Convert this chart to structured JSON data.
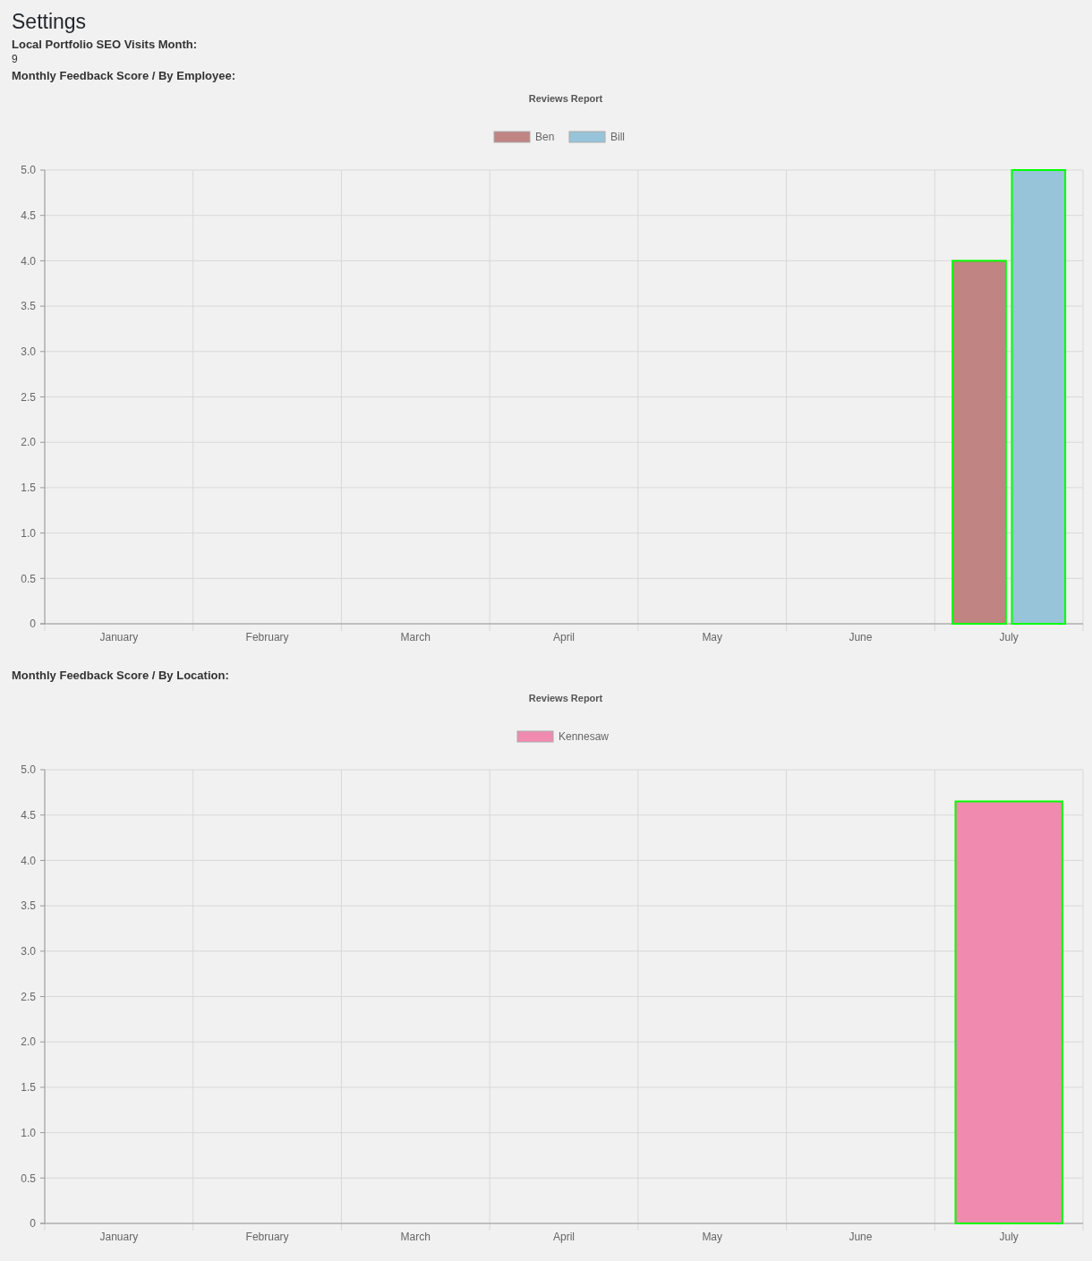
{
  "chart_data": [
    {
      "type": "bar",
      "title": "Reviews Report",
      "subtitle": "Monthly Feedback Score / By Employee:",
      "annotations": [
        "Settings",
        "Local Portfolio SEO Visits Month:",
        "9"
      ],
      "categories": [
        "January",
        "February",
        "March",
        "April",
        "May",
        "June",
        "July"
      ],
      "series": [
        {
          "name": "Ben",
          "color": "#c08482",
          "values": [
            null,
            null,
            null,
            null,
            null,
            null,
            4.0
          ]
        },
        {
          "name": "Bill",
          "color": "#97c4d8",
          "values": [
            null,
            null,
            null,
            null,
            null,
            null,
            5.0
          ]
        }
      ],
      "ylim": [
        0,
        5
      ],
      "yticks": [
        0,
        0.5,
        {
          "value": 1,
          "label": "1.0"
        },
        1.5,
        {
          "value": 2,
          "label": "2.0"
        },
        2.5,
        {
          "value": 3,
          "label": "3.0"
        },
        3.5,
        {
          "value": 4,
          "label": "4.0"
        },
        4.5,
        {
          "value": 5,
          "label": "5.0"
        }
      ],
      "grid": true,
      "legend": "top"
    },
    {
      "type": "bar",
      "title": "Reviews Report",
      "subtitle": "Monthly Feedback Score / By Location:",
      "categories": [
        "January",
        "February",
        "March",
        "April",
        "May",
        "June",
        "July"
      ],
      "series": [
        {
          "name": "Kennesaw",
          "color": "#f08aae",
          "values": [
            null,
            null,
            null,
            null,
            null,
            null,
            4.65
          ]
        }
      ],
      "ylim": [
        0,
        5
      ],
      "yticks": [
        0,
        0.5,
        {
          "value": 1,
          "label": "1.0"
        },
        1.5,
        {
          "value": 2,
          "label": "2.0"
        },
        2.5,
        {
          "value": 3,
          "label": "3.0"
        },
        3.5,
        {
          "value": 4,
          "label": "4.0"
        },
        4.5,
        {
          "value": 5,
          "label": "5.0"
        }
      ],
      "grid": true,
      "legend": "top"
    }
  ]
}
